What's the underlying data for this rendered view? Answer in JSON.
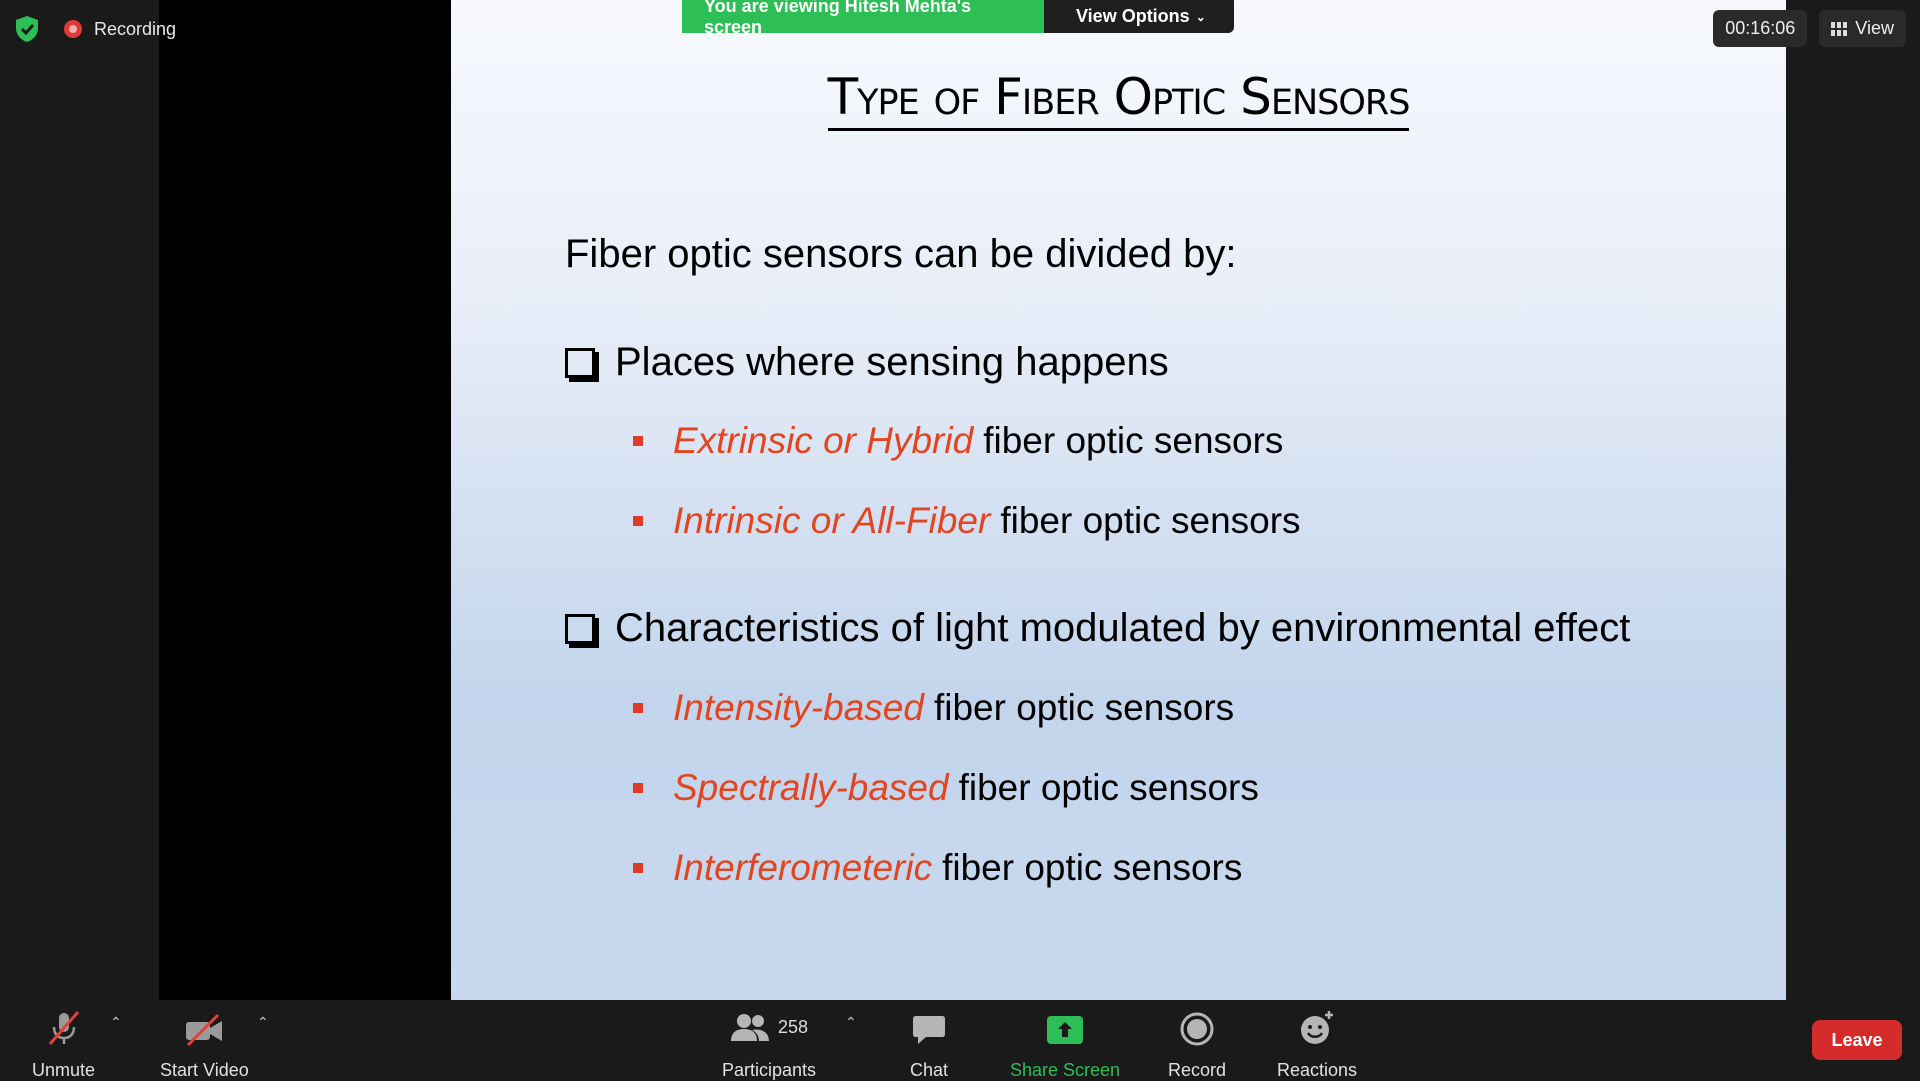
{
  "status": {
    "recording_label": "Recording",
    "timer": "00:16:06",
    "view_label": "View"
  },
  "banner": {
    "viewing_text": "You are viewing Hitesh Mehta's screen",
    "view_options_label": "View Options"
  },
  "slide": {
    "title": "Type of Fiber Optic Sensors",
    "intro": "Fiber optic sensors can be divided by:",
    "groups": [
      {
        "heading": "Places where sensing happens",
        "items": [
          {
            "highlight": "Extrinsic or Hybrid",
            "rest": "fiber optic sensors"
          },
          {
            "highlight": "Intrinsic or All-Fiber",
            "rest": "fiber optic sensors"
          }
        ]
      },
      {
        "heading": "Characteristics of light modulated by environmental effect",
        "items": [
          {
            "highlight": "Intensity-based",
            "rest": "fiber optic sensors"
          },
          {
            "highlight": "Spectrally-based",
            "rest": "fiber optic sensors"
          },
          {
            "highlight": "Interferometeric",
            "rest": "fiber optic sensors"
          }
        ]
      }
    ]
  },
  "toolbar": {
    "unmute_label": "Unmute",
    "start_video_label": "Start Video",
    "participants_label": "Participants",
    "participants_count": "258",
    "chat_label": "Chat",
    "share_screen_label": "Share Screen",
    "record_label": "Record",
    "reactions_label": "Reactions",
    "leave_label": "Leave"
  },
  "colors": {
    "share_green": "#2dbf55",
    "leave_red": "#d52b2b",
    "slide_accent": "#e2451f"
  }
}
